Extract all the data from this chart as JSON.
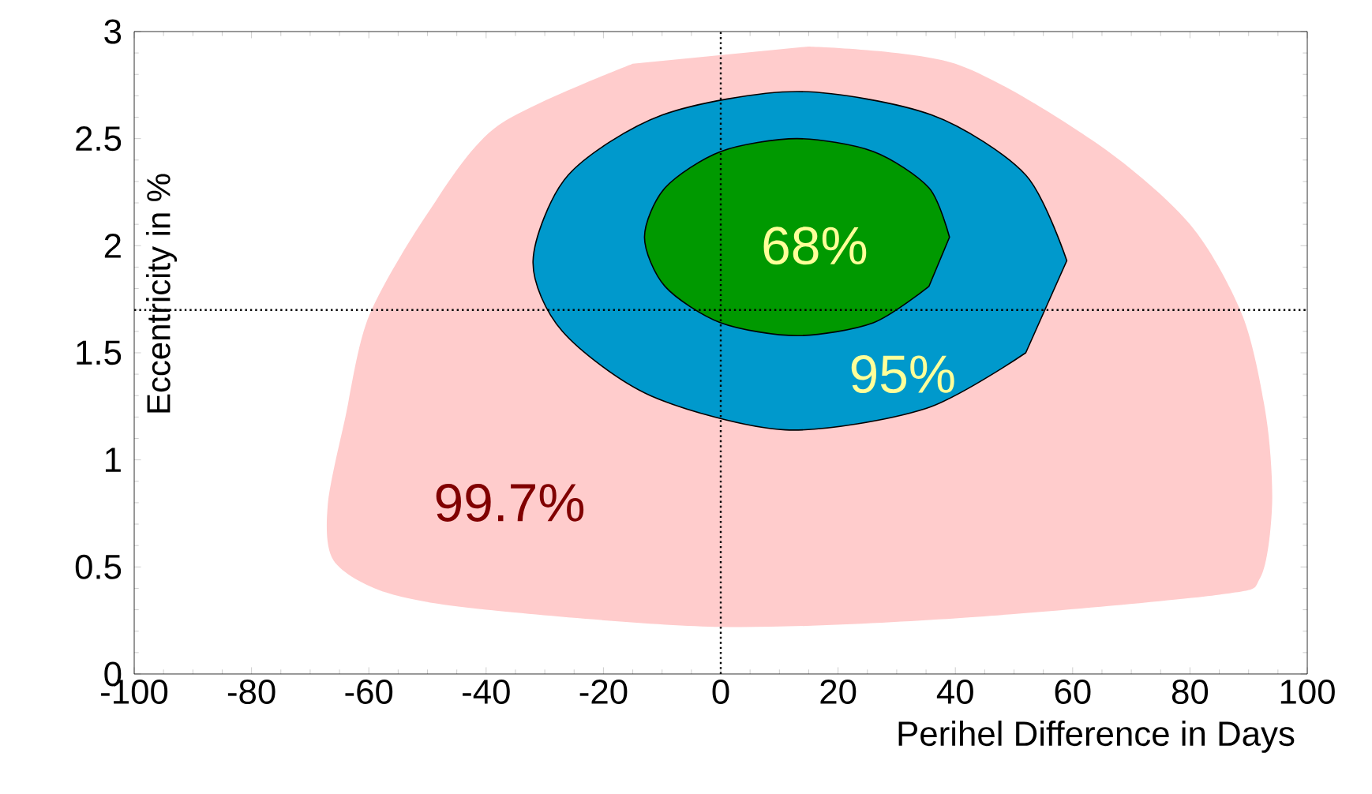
{
  "chart_data": {
    "type": "area",
    "xlabel": "Perihel Difference in Days",
    "ylabel": "Eccentricity in %",
    "xlim": [
      -100,
      100
    ],
    "ylim": [
      0,
      3
    ],
    "xticks": [
      -100,
      -80,
      -60,
      -40,
      -20,
      0,
      20,
      40,
      60,
      80,
      100
    ],
    "yticks": [
      0,
      0.5,
      1,
      1.5,
      2,
      2.5,
      3
    ],
    "series": [
      {
        "color": "#ffcccc",
        "x": [
          15,
          40,
          64,
          80,
          89,
          93,
          94,
          92,
          85,
          40,
          0,
          -40,
          -57,
          -66,
          -67,
          -64,
          -60,
          -50,
          -38,
          -15
        ],
        "values": [
          2.93,
          2.85,
          2.48,
          2.1,
          1.67,
          1.2,
          0.79,
          0.45,
          0.37,
          0.26,
          0.22,
          0.3,
          0.38,
          0.53,
          0.79,
          1.2,
          1.67,
          2.15,
          2.56,
          2.85
        ]
      },
      {
        "color": "#0099cc",
        "x": [
          59,
          52,
          36,
          13,
          -10,
          -26,
          -32,
          -27,
          -12,
          11,
          35,
          52
        ],
        "values": [
          1.93,
          2.33,
          2.61,
          2.72,
          2.61,
          2.33,
          1.93,
          1.6,
          1.3,
          1.14,
          1.24,
          1.5
        ]
      },
      {
        "color": "#009900",
        "x": [
          39,
          35.5,
          26,
          13,
          0,
          -9.5,
          -13,
          -9.5,
          0,
          13,
          26,
          35.5
        ],
        "values": [
          2.04,
          2.27,
          2.44,
          2.5,
          2.44,
          2.27,
          2.04,
          1.81,
          1.64,
          1.58,
          1.64,
          1.81
        ]
      }
    ],
    "ref_lines": [
      {
        "axis": "x",
        "value": 0,
        "line_style": "dotted"
      },
      {
        "axis": "y",
        "value": 1.7,
        "line_style": "dotted"
      }
    ],
    "annotations": [
      "68%",
      "95%",
      "99.7%"
    ]
  }
}
